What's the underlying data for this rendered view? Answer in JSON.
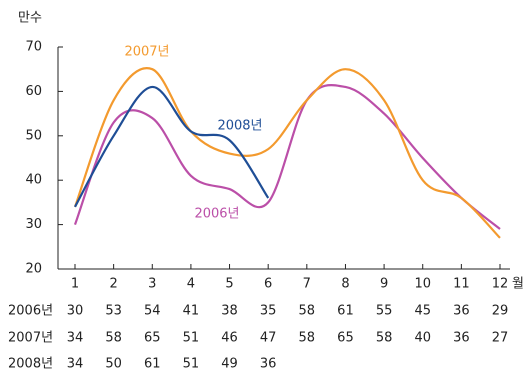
{
  "chart_data": {
    "type": "line",
    "y_label": "만수",
    "x_label": "월",
    "categories": [
      "1",
      "2",
      "3",
      "4",
      "5",
      "6",
      "7",
      "8",
      "9",
      "10",
      "11",
      "12"
    ],
    "ylim": [
      20,
      70
    ],
    "yticks": [
      20,
      30,
      40,
      50,
      60,
      70
    ],
    "series": [
      {
        "name": "2006년",
        "color": "#bb4fa8",
        "values": [
          30,
          53,
          54,
          41,
          38,
          35,
          58,
          61,
          55,
          45,
          36,
          29
        ]
      },
      {
        "name": "2007년",
        "color": "#f39a2e",
        "values": [
          34,
          58,
          65,
          51,
          46,
          47,
          58,
          65,
          58,
          40,
          36,
          27
        ]
      },
      {
        "name": "2008년",
        "color": "#1f4e96",
        "values": [
          34,
          50,
          61,
          51,
          49,
          36,
          null,
          null,
          null,
          null,
          null,
          null
        ]
      }
    ]
  }
}
